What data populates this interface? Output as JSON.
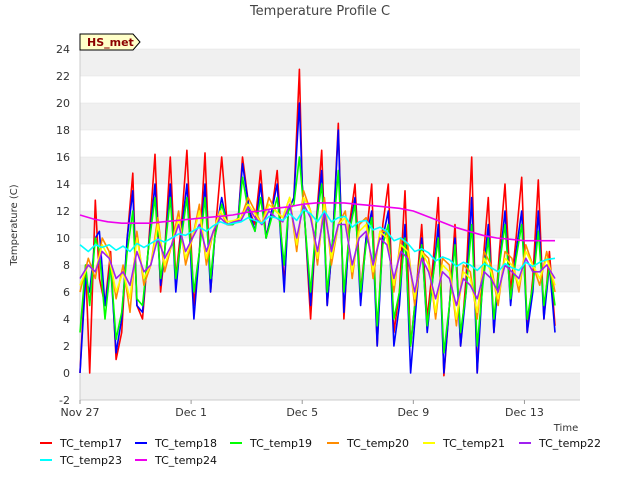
{
  "chart_data": {
    "type": "line",
    "title": "Temperature Profile C",
    "xlabel": "Time",
    "ylabel": "Temperature (C)",
    "badge": "HS_met",
    "grid": "horizontal bands",
    "legend_placement": "bottom",
    "x_unit": "days since Nov 27",
    "xlim": [
      0,
      18
    ],
    "ylim": [
      -2,
      24
    ],
    "x_ticks": [
      {
        "x": 0,
        "label": "Nov 27"
      },
      {
        "x": 4,
        "label": "Dec 1"
      },
      {
        "x": 8,
        "label": "Dec 5"
      },
      {
        "x": 12,
        "label": "Dec 9"
      },
      {
        "x": 16,
        "label": "Dec 13"
      }
    ],
    "y_ticks": [
      -2,
      0,
      2,
      4,
      6,
      8,
      10,
      12,
      14,
      16,
      18,
      20,
      22,
      24
    ],
    "series": [
      {
        "name": "TC_temp17",
        "color": "#ff0000",
        "x": [
          0.0,
          0.2,
          0.35,
          0.55,
          0.7,
          0.9,
          1.1,
          1.3,
          1.5,
          1.7,
          1.9,
          2.05,
          2.25,
          2.45,
          2.7,
          2.9,
          3.05,
          3.25,
          3.45,
          3.65,
          3.85,
          4.1,
          4.3,
          4.5,
          4.7,
          4.85,
          5.1,
          5.3,
          5.5,
          5.7,
          5.85,
          6.1,
          6.3,
          6.5,
          6.7,
          6.9,
          7.1,
          7.35,
          7.5,
          7.7,
          7.9,
          8.0,
          8.1,
          8.3,
          8.5,
          8.7,
          8.9,
          9.1,
          9.3,
          9.5,
          9.7,
          9.9,
          10.1,
          10.3,
          10.5,
          10.7,
          10.9,
          11.1,
          11.3,
          11.5,
          11.7,
          11.9,
          12.1,
          12.3,
          12.5,
          12.7,
          12.9,
          13.1,
          13.3,
          13.5,
          13.7,
          13.9,
          14.1,
          14.3,
          14.5,
          14.7,
          14.9,
          15.1,
          15.3,
          15.5,
          15.7,
          15.9,
          16.1,
          16.3,
          16.5,
          16.7,
          16.9,
          17.1
        ],
        "y": [
          0,
          8,
          0,
          12.8,
          7,
          5,
          9,
          1,
          3,
          10,
          14.8,
          5,
          4,
          9,
          16.2,
          6,
          9,
          16,
          7,
          11,
          16.5,
          5,
          9,
          16.3,
          6,
          10,
          16,
          11,
          11,
          11.5,
          16,
          12,
          11,
          15,
          10,
          12,
          15,
          6.5,
          12,
          13,
          22.5,
          14,
          11,
          4,
          11,
          16.5,
          5,
          10,
          18.5,
          4,
          11,
          14,
          6,
          10,
          14,
          2,
          11,
          14,
          3,
          6,
          13.5,
          2,
          6,
          11,
          4,
          8,
          13,
          -0.2,
          5,
          11,
          2,
          7,
          16,
          0,
          8,
          13,
          3,
          9,
          14,
          6,
          10,
          14.5,
          3,
          7,
          14.3,
          4,
          9,
          3.5
        ]
      },
      {
        "name": "TC_temp18",
        "color": "#0000ff",
        "x": [
          0.0,
          0.2,
          0.35,
          0.55,
          0.7,
          0.9,
          1.1,
          1.3,
          1.5,
          1.7,
          1.9,
          2.05,
          2.25,
          2.45,
          2.7,
          2.9,
          3.05,
          3.25,
          3.45,
          3.65,
          3.85,
          4.1,
          4.3,
          4.5,
          4.7,
          4.85,
          5.1,
          5.3,
          5.5,
          5.7,
          5.85,
          6.1,
          6.3,
          6.5,
          6.7,
          6.9,
          7.1,
          7.35,
          7.5,
          7.7,
          7.9,
          8.0,
          8.1,
          8.3,
          8.5,
          8.7,
          8.9,
          9.1,
          9.3,
          9.5,
          9.7,
          9.9,
          10.1,
          10.3,
          10.5,
          10.7,
          10.9,
          11.1,
          11.3,
          11.5,
          11.7,
          11.9,
          12.1,
          12.3,
          12.5,
          12.7,
          12.9,
          13.1,
          13.3,
          13.5,
          13.7,
          13.9,
          14.1,
          14.3,
          14.5,
          14.7,
          14.9,
          15.1,
          15.3,
          15.5,
          15.7,
          15.9,
          16.1,
          16.3,
          16.5,
          16.7,
          16.9,
          17.1
        ],
        "y": [
          0,
          7,
          6,
          10,
          10.5,
          5,
          8,
          1.5,
          4,
          10,
          13.5,
          5,
          4.5,
          9,
          14,
          6.5,
          9,
          14,
          6,
          10.5,
          14,
          4,
          9,
          14,
          6,
          10,
          13,
          11,
          11,
          11.5,
          15.5,
          12,
          10.5,
          14,
          10,
          12,
          14,
          6,
          12,
          13,
          20,
          14,
          11,
          5,
          11,
          15,
          5,
          10,
          18,
          4.5,
          10.5,
          13,
          5,
          10,
          12,
          2,
          10,
          12,
          2,
          5,
          11,
          0,
          5,
          10,
          3,
          7,
          11,
          0,
          5,
          10,
          2,
          6,
          13,
          0,
          7,
          11,
          3,
          8,
          12,
          5,
          9,
          12,
          3,
          6,
          12,
          4,
          8,
          3
        ]
      },
      {
        "name": "TC_temp19",
        "color": "#00ff00",
        "x": [
          0.0,
          0.2,
          0.35,
          0.55,
          0.7,
          0.9,
          1.1,
          1.3,
          1.5,
          1.7,
          1.9,
          2.05,
          2.25,
          2.45,
          2.7,
          2.9,
          3.05,
          3.25,
          3.45,
          3.65,
          3.85,
          4.1,
          4.3,
          4.5,
          4.7,
          4.85,
          5.1,
          5.3,
          5.5,
          5.7,
          5.85,
          6.1,
          6.3,
          6.5,
          6.7,
          6.9,
          7.1,
          7.35,
          7.5,
          7.7,
          7.9,
          8.0,
          8.1,
          8.3,
          8.5,
          8.7,
          8.9,
          9.1,
          9.3,
          9.5,
          9.7,
          9.9,
          10.1,
          10.3,
          10.5,
          10.7,
          10.9,
          11.1,
          11.3,
          11.5,
          11.7,
          11.9,
          12.1,
          12.3,
          12.5,
          12.7,
          12.9,
          13.1,
          13.3,
          13.5,
          13.7,
          13.9,
          14.1,
          14.3,
          14.5,
          14.7,
          14.9,
          15.1,
          15.3,
          15.5,
          15.7,
          15.9,
          16.1,
          16.3,
          16.5,
          16.7,
          16.9,
          17.1
        ],
        "y": [
          3,
          8,
          5,
          10,
          9,
          4,
          8,
          2.5,
          4.5,
          9,
          12,
          5.5,
          5,
          9,
          13,
          7,
          9,
          13,
          7,
          10,
          13,
          6,
          9,
          13,
          7,
          10,
          12.5,
          11,
          11,
          11.3,
          14.5,
          11.5,
          10.5,
          13,
          10,
          11.5,
          13,
          8,
          12,
          12.5,
          16,
          13.5,
          11,
          6,
          11,
          14,
          6,
          10,
          15,
          6,
          10.5,
          12.5,
          6,
          9.5,
          11.5,
          3.5,
          9.5,
          11,
          4,
          6,
          10,
          2,
          6,
          9.5,
          3.5,
          7,
          10,
          1.5,
          5,
          9.5,
          3,
          6,
          11,
          2,
          6.5,
          10,
          4,
          8,
          11,
          5.5,
          8.5,
          11,
          4,
          6.5,
          10.5,
          5,
          8,
          5
        ]
      },
      {
        "name": "TC_temp20",
        "color": "#ff8c00",
        "x": [
          0.0,
          0.3,
          0.55,
          0.8,
          1.05,
          1.3,
          1.55,
          1.8,
          2.05,
          2.3,
          2.55,
          2.8,
          3.05,
          3.3,
          3.55,
          3.8,
          4.05,
          4.3,
          4.55,
          4.8,
          5.05,
          5.3,
          5.55,
          5.8,
          6.05,
          6.3,
          6.55,
          6.8,
          7.05,
          7.3,
          7.55,
          7.8,
          8.05,
          8.3,
          8.55,
          8.8,
          9.05,
          9.3,
          9.55,
          9.8,
          10.05,
          10.3,
          10.55,
          10.8,
          11.05,
          11.3,
          11.55,
          11.8,
          12.05,
          12.3,
          12.55,
          12.8,
          13.05,
          13.3,
          13.55,
          13.8,
          14.05,
          14.3,
          14.55,
          14.8,
          15.05,
          15.3,
          15.55,
          15.8,
          16.05,
          16.3,
          16.55,
          16.8,
          17.1
        ],
        "y": [
          6,
          8.5,
          7,
          10,
          9,
          5.5,
          8,
          4.5,
          10.5,
          6.5,
          8,
          11.5,
          7.5,
          9.5,
          12,
          8,
          10,
          12.5,
          8,
          10.5,
          12,
          11,
          11.2,
          11.5,
          13,
          12,
          11,
          13,
          12,
          11.5,
          13,
          9,
          13.5,
          12,
          8,
          13,
          8,
          11,
          12,
          7,
          11,
          11.5,
          7,
          10.5,
          10.5,
          6,
          10,
          9.5,
          5,
          9,
          8.5,
          4,
          8.5,
          8,
          3.5,
          8,
          7.5,
          4,
          9,
          8,
          5,
          9,
          8.5,
          6,
          9.5,
          8,
          6.5,
          9,
          6
        ]
      },
      {
        "name": "TC_temp21",
        "color": "#ffff00",
        "x": [
          0.0,
          0.3,
          0.55,
          0.8,
          1.05,
          1.3,
          1.55,
          1.8,
          2.05,
          2.3,
          2.55,
          2.8,
          3.05,
          3.3,
          3.55,
          3.8,
          4.05,
          4.3,
          4.55,
          4.8,
          5.05,
          5.3,
          5.55,
          5.8,
          6.05,
          6.3,
          6.55,
          6.8,
          7.05,
          7.3,
          7.55,
          7.8,
          8.05,
          8.3,
          8.55,
          8.8,
          9.05,
          9.3,
          9.55,
          9.8,
          10.05,
          10.3,
          10.55,
          10.8,
          11.05,
          11.3,
          11.55,
          11.8,
          12.05,
          12.3,
          12.55,
          12.8,
          13.05,
          13.3,
          13.55,
          13.8,
          14.05,
          14.3,
          14.55,
          14.8,
          15.05,
          15.3,
          15.55,
          15.8,
          16.05,
          16.3,
          16.55,
          16.8,
          17.1
        ],
        "y": [
          6.5,
          8,
          7.5,
          9.5,
          8.5,
          6,
          7.5,
          5.5,
          10,
          7,
          8,
          11,
          8,
          9.5,
          11.5,
          8.5,
          10,
          12,
          8.5,
          10.5,
          12,
          11.2,
          11.3,
          11.5,
          12.5,
          11.8,
          11,
          12.5,
          12,
          11.5,
          13,
          9.5,
          13,
          12,
          8.5,
          12.5,
          8.5,
          11,
          11.5,
          7.5,
          10.5,
          11,
          7.5,
          10.5,
          10,
          6.5,
          9.5,
          9,
          5.5,
          9,
          8,
          4.5,
          8,
          7.5,
          4,
          7.5,
          7,
          4.5,
          8.5,
          7.5,
          5.5,
          8.5,
          8,
          6.5,
          9,
          8,
          7,
          8.5,
          6.5
        ]
      },
      {
        "name": "TC_temp22",
        "color": "#a020f0",
        "x": [
          0.0,
          0.3,
          0.55,
          0.8,
          1.05,
          1.3,
          1.55,
          1.8,
          2.05,
          2.3,
          2.55,
          2.8,
          3.05,
          3.3,
          3.55,
          3.8,
          4.05,
          4.3,
          4.55,
          4.8,
          5.05,
          5.3,
          5.55,
          5.8,
          6.05,
          6.3,
          6.55,
          6.8,
          7.05,
          7.3,
          7.55,
          7.8,
          8.05,
          8.3,
          8.55,
          8.8,
          9.05,
          9.3,
          9.55,
          9.8,
          10.05,
          10.3,
          10.55,
          10.8,
          11.05,
          11.3,
          11.55,
          11.8,
          12.05,
          12.3,
          12.55,
          12.8,
          13.05,
          13.3,
          13.55,
          13.8,
          14.05,
          14.3,
          14.55,
          14.8,
          15.05,
          15.3,
          15.55,
          15.8,
          16.05,
          16.3,
          16.55,
          16.8,
          17.1
        ],
        "y": [
          7,
          8,
          7.5,
          9,
          8.5,
          7,
          7.5,
          6.5,
          9,
          7.5,
          8,
          10,
          8.5,
          9.5,
          11,
          9,
          10,
          11,
          9,
          10.5,
          11.5,
          11,
          11.2,
          11.3,
          12.3,
          11.5,
          11,
          12,
          11.5,
          11.2,
          12.5,
          10,
          12.5,
          11.5,
          9,
          12,
          9,
          11,
          11,
          8,
          10,
          10.5,
          8,
          10,
          9.5,
          7,
          9,
          8.5,
          6,
          8.5,
          7.5,
          5.5,
          7.5,
          7,
          5,
          7,
          6.5,
          5.5,
          7.5,
          7,
          6,
          8,
          7.5,
          7,
          8.5,
          7.5,
          7.5,
          8,
          7
        ]
      },
      {
        "name": "TC_temp23",
        "color": "#00ffff",
        "x": [
          0.0,
          0.3,
          0.55,
          0.8,
          1.05,
          1.3,
          1.55,
          1.8,
          2.05,
          2.3,
          2.55,
          2.8,
          3.05,
          3.3,
          3.55,
          3.8,
          4.05,
          4.3,
          4.55,
          4.8,
          5.05,
          5.3,
          5.55,
          5.8,
          6.05,
          6.3,
          6.55,
          6.8,
          7.05,
          7.3,
          7.55,
          7.8,
          8.05,
          8.3,
          8.55,
          8.8,
          9.05,
          9.3,
          9.55,
          9.8,
          10.05,
          10.3,
          10.55,
          10.8,
          11.05,
          11.3,
          11.55,
          11.8,
          12.05,
          12.3,
          12.55,
          12.8,
          13.05,
          13.3,
          13.55,
          13.8,
          14.05,
          14.3,
          14.55,
          14.8,
          15.05,
          15.3,
          15.55,
          15.8,
          16.05,
          16.3,
          16.55,
          16.8,
          17.1
        ],
        "y": [
          9.5,
          9,
          9.5,
          9.3,
          9.5,
          9.1,
          9.4,
          9,
          9.6,
          9.3,
          9.6,
          9.9,
          9.7,
          10,
          10.3,
          10.2,
          10.5,
          10.8,
          10.5,
          10.9,
          11.2,
          11,
          11.1,
          11.2,
          11.5,
          11.3,
          11.1,
          11.6,
          11.5,
          11.3,
          11.8,
          11.3,
          12.1,
          11.8,
          11.2,
          12,
          11.2,
          11.5,
          11.6,
          10.8,
          11.2,
          11.3,
          10.6,
          10.8,
          10.5,
          9.8,
          10,
          9.6,
          9,
          9.2,
          8.9,
          8.3,
          8.6,
          8.4,
          7.9,
          8.2,
          8,
          7.6,
          8.1,
          7.8,
          7.5,
          8.1,
          7.8,
          7.6,
          8.2,
          7.9,
          8.2,
          8.4,
          8.5
        ]
      },
      {
        "name": "TC_temp24",
        "color": "#ee00ee",
        "x": [
          0.0,
          0.5,
          1.0,
          1.5,
          2.0,
          2.5,
          3.0,
          3.5,
          4.0,
          4.5,
          5.0,
          5.5,
          6.0,
          6.5,
          7.0,
          7.5,
          8.0,
          8.5,
          9.0,
          9.5,
          10.0,
          10.5,
          11.0,
          11.5,
          12.0,
          12.5,
          13.0,
          13.5,
          14.0,
          14.5,
          15.0,
          15.5,
          16.0,
          16.5,
          17.0,
          17.1
        ],
        "y": [
          11.7,
          11.4,
          11.2,
          11.1,
          11.1,
          11.1,
          11.2,
          11.3,
          11.4,
          11.5,
          11.6,
          11.7,
          11.9,
          12.0,
          12.2,
          12.3,
          12.5,
          12.6,
          12.6,
          12.6,
          12.5,
          12.4,
          12.3,
          12.2,
          12.0,
          11.6,
          11.2,
          10.8,
          10.5,
          10.2,
          10.0,
          9.9,
          9.8,
          9.8,
          9.8,
          9.8
        ]
      }
    ]
  }
}
